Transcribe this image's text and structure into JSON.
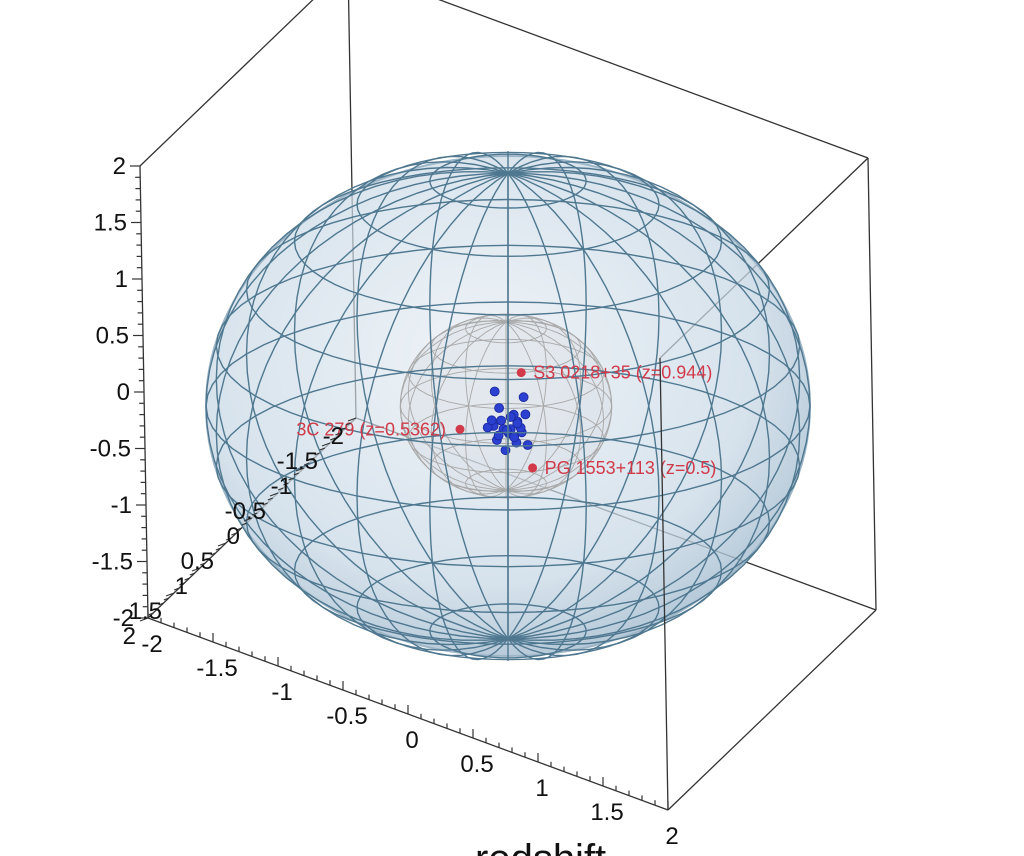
{
  "chart_data": {
    "type": "scatter",
    "title": "",
    "xlabel": "redshift",
    "ylabel": "",
    "zlabel": "",
    "x_range": [
      -2,
      2
    ],
    "y_range": [
      -2,
      2
    ],
    "z_range": [
      -2,
      2
    ],
    "tick_labels": {
      "x": [
        "-2",
        "-1.5",
        "-1",
        "-0.5",
        "0",
        "0.5",
        "1",
        "1.5",
        "2"
      ],
      "y": [
        "2",
        "1.5",
        "1",
        "0.5",
        "0",
        "-0.5",
        "-1",
        "-1.5",
        "-2"
      ],
      "z": [
        "2",
        "1.5",
        "1",
        "0.5",
        "0",
        "-0.5",
        "-1",
        "-1.5",
        "-2"
      ]
    },
    "outer_sphere": {
      "radius": 1,
      "face_color": "#c9d9e6",
      "mesh_color": "#4f7890"
    },
    "inner_sphere": {
      "radius": 0.35,
      "mesh_color": "#a8a8a8"
    },
    "series": [
      {
        "marker_color": "#2b3fd0",
        "points": [
          [
            0.02,
            -0.05,
            -0.25
          ],
          [
            -0.05,
            0.02,
            -0.3
          ],
          [
            0.06,
            -0.02,
            -0.28
          ],
          [
            -0.02,
            0.05,
            -0.35
          ],
          [
            0.0,
            0.0,
            -0.4
          ],
          [
            0.04,
            0.06,
            -0.32
          ],
          [
            -0.08,
            -0.02,
            -0.22
          ],
          [
            0.08,
            -0.05,
            -0.38
          ],
          [
            -0.04,
            -0.06,
            -0.42
          ],
          [
            0.1,
            0.02,
            -0.3
          ],
          [
            -0.1,
            0.04,
            -0.36
          ],
          [
            0.03,
            -0.09,
            -0.34
          ],
          [
            -0.06,
            0.08,
            -0.45
          ],
          [
            0.07,
            0.03,
            -0.44
          ],
          [
            -0.12,
            -0.04,
            -0.1
          ],
          [
            0.14,
            0.05,
            0.0
          ],
          [
            -0.15,
            0.03,
            -0.4
          ],
          [
            0.12,
            -0.06,
            -0.48
          ],
          [
            -0.02,
            0.02,
            -0.55
          ],
          [
            0.05,
            0.08,
            -0.2
          ],
          [
            -0.09,
            0.1,
            -0.28
          ],
          [
            0.0,
            -0.1,
            -0.48
          ],
          [
            0.09,
            -0.1,
            -0.24
          ],
          [
            -0.03,
            0.12,
            -0.38
          ]
        ]
      },
      {
        "marker_color": "#d23a4a",
        "points": [
          {
            "label": "S3 0218+35 (z=0.944)",
            "x": 0.35,
            "y": 0.6,
            "z": 0.55
          },
          {
            "label": "PG 1553+113 (z=0.5)",
            "x": 0.2,
            "y": 0.05,
            "z": -0.6
          },
          {
            "label": "3C 279 (z=0.5362)",
            "x": -0.48,
            "y": -0.25,
            "z": -0.68
          }
        ]
      }
    ]
  }
}
